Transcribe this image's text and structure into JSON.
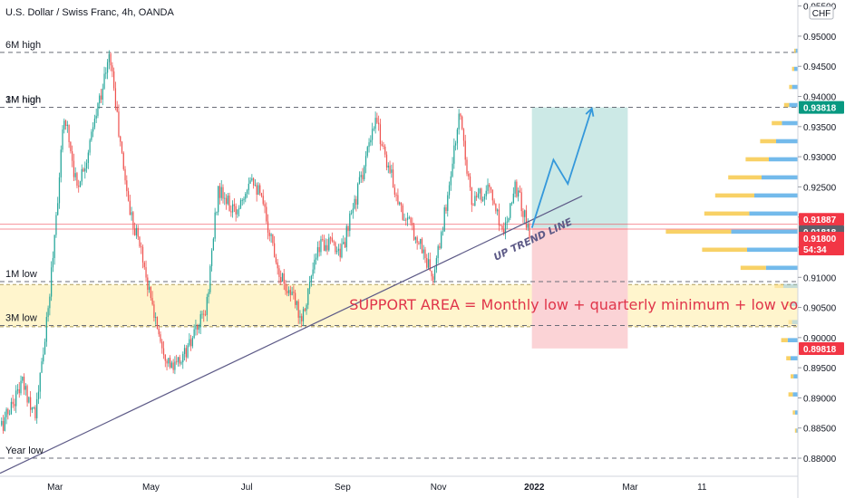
{
  "header": {
    "symbol_title": "U.S. Dollar / Swiss Franc, 4h, OANDA"
  },
  "colors": {
    "up_candle": "#26a69a",
    "down_candle": "#ef5350",
    "support_zone": "#fff3c4",
    "target_zone": "#cce9e6",
    "stop_zone": "#fbd3d6",
    "trendline": "#5d5a87",
    "projection": "#3498db",
    "annotation_red": "#e0354a",
    "vp_up": "#5aaee8",
    "vp_down": "#f7c94b",
    "tag_dark": "#131722",
    "tag_teal": "#089981",
    "tag_red": "#f23645",
    "tag_gray": "#5d606b"
  },
  "chart_data": {
    "type": "candlestick",
    "symbol": "USD/CHF",
    "timeframe": "4h",
    "source": "OANDA",
    "currency": "CHF",
    "y_axis": {
      "ylim": [
        0.877,
        0.956
      ],
      "ticks": [
        "0.95500",
        "0.95000",
        "0.94500",
        "0.94000",
        "0.93500",
        "0.93000",
        "0.92500",
        "0.92000",
        "0.91500",
        "0.91000",
        "0.90500",
        "0.90000",
        "0.89500",
        "0.89000",
        "0.88500",
        "0.88000"
      ],
      "tick_values": [
        0.955,
        0.95,
        0.945,
        0.94,
        0.935,
        0.93,
        0.925,
        0.92,
        0.915,
        0.91,
        0.905,
        0.9,
        0.895,
        0.89,
        0.885,
        0.88
      ]
    },
    "x_axis": {
      "labels": [
        "Mar",
        "May",
        "Jul",
        "Sep",
        "Nov",
        "2022",
        "Mar",
        "11"
      ],
      "label_pos": [
        2,
        4,
        6,
        8,
        10,
        12,
        14,
        15.5
      ],
      "range": [
        0.85,
        17.5
      ],
      "last_candle": 11.9,
      "bold_label": "2022"
    },
    "price_path": [
      [
        0.9,
        0.8855
      ],
      [
        1.3,
        0.8925
      ],
      [
        1.6,
        0.8875
      ],
      [
        1.85,
        0.904
      ],
      [
        2.2,
        0.9375
      ],
      [
        2.45,
        0.925
      ],
      [
        2.7,
        0.931
      ],
      [
        2.95,
        0.9405
      ],
      [
        3.15,
        0.947
      ],
      [
        3.35,
        0.9325
      ],
      [
        3.55,
        0.9215
      ],
      [
        3.8,
        0.9145
      ],
      [
        4.0,
        0.906
      ],
      [
        4.25,
        0.8985
      ],
      [
        4.45,
        0.8945
      ],
      [
        4.8,
        0.8985
      ],
      [
        5.15,
        0.9045
      ],
      [
        5.4,
        0.9245
      ],
      [
        5.75,
        0.9205
      ],
      [
        6.1,
        0.9275
      ],
      [
        6.35,
        0.9215
      ],
      [
        6.7,
        0.9105
      ],
      [
        7.15,
        0.9035
      ],
      [
        7.3,
        0.9085
      ],
      [
        7.55,
        0.916
      ],
      [
        8.0,
        0.9145
      ],
      [
        8.35,
        0.9255
      ],
      [
        8.7,
        0.936
      ],
      [
        8.95,
        0.9285
      ],
      [
        9.25,
        0.9205
      ],
      [
        9.6,
        0.916
      ],
      [
        9.9,
        0.9095
      ],
      [
        10.15,
        0.9215
      ],
      [
        10.45,
        0.9375
      ],
      [
        10.7,
        0.922
      ],
      [
        11.05,
        0.925
      ],
      [
        11.35,
        0.9175
      ],
      [
        11.6,
        0.9255
      ],
      [
        11.9,
        0.9175
      ]
    ],
    "levels": [
      {
        "label": "6M high",
        "price": 0.9473
      },
      {
        "label": "1M high",
        "price": 0.9382
      },
      {
        "label": "3M high",
        "price": 0.9382
      },
      {
        "label": "1M low",
        "price": 0.9093
      },
      {
        "label": "3M low",
        "price": 0.902
      },
      {
        "label": "Year low",
        "price": 0.88
      }
    ],
    "support_area": {
      "label": "SUPPORT AREA = Monthly low + quarterly minimum + low volume",
      "top": 0.9088,
      "bottom": 0.9018
    },
    "trendline": {
      "label": "UP TREND LINE",
      "from": [
        0.85,
        0.8775
      ],
      "to": [
        13.0,
        0.9235
      ]
    },
    "position": {
      "entry": 0.9182,
      "target": 0.9382,
      "stop": 0.8982,
      "x_from": 11.95,
      "x_to": 13.95
    },
    "projection": [
      [
        11.95,
        0.9182
      ],
      [
        12.4,
        0.9295
      ],
      [
        12.7,
        0.9255
      ],
      [
        13.2,
        0.938
      ]
    ],
    "price_tags": [
      {
        "value": "0.93818",
        "price": 0.93818,
        "color": "#089981"
      },
      {
        "value": "0.91887",
        "price": 0.91887,
        "color": "#f23645"
      },
      {
        "value": "0.91818",
        "price": 0.91818,
        "color": "#5d606b"
      },
      {
        "value": "0.91800",
        "price": 0.918,
        "color": "#f23645",
        "sub": "54:34"
      },
      {
        "value": "0.89818",
        "price": 0.89818,
        "color": "#f23645"
      }
    ],
    "horizontal_lines": [
      {
        "price": 0.9188,
        "color": "#f23645"
      },
      {
        "price": 0.918,
        "color": "#f23645"
      }
    ],
    "volume_profile": {
      "note": "up/down volume per price row, relative units",
      "rows": [
        [
          0.9475,
          0.3,
          0.2
        ],
        [
          0.9445,
          0.5,
          0.3
        ],
        [
          0.9415,
          0.8,
          0.4
        ],
        [
          0.9385,
          1.2,
          0.7
        ],
        [
          0.9355,
          2.2,
          1.4
        ],
        [
          0.9325,
          3.0,
          2.2
        ],
        [
          0.9295,
          4.0,
          3.2
        ],
        [
          0.9265,
          5.0,
          4.6
        ],
        [
          0.9235,
          6.0,
          5.4
        ],
        [
          0.9205,
          6.7,
          6.2
        ],
        [
          0.9175,
          9.2,
          9.0
        ],
        [
          0.9145,
          7.0,
          6.2
        ],
        [
          0.9115,
          4.4,
          3.5
        ],
        [
          0.9085,
          2.0,
          1.2
        ],
        [
          0.9055,
          1.0,
          0.6
        ],
        [
          0.9025,
          0.8,
          0.5
        ],
        [
          0.8995,
          1.4,
          0.9
        ],
        [
          0.8965,
          1.0,
          0.6
        ],
        [
          0.8935,
          0.6,
          0.4
        ],
        [
          0.8905,
          0.7,
          0.6
        ],
        [
          0.8875,
          0.4,
          0.3
        ],
        [
          0.8845,
          0.2,
          0.2
        ]
      ]
    }
  }
}
